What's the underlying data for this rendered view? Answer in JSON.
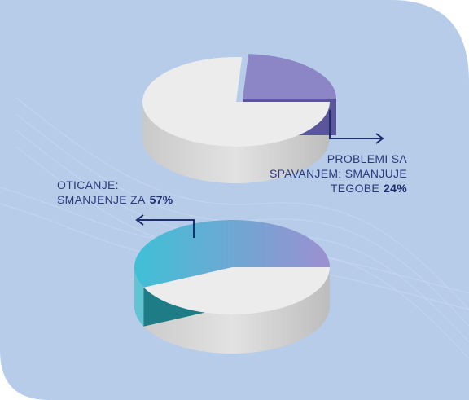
{
  "chart_data": [
    {
      "type": "pie",
      "label_lines": [
        "PROBLEMI SA",
        "SPAVANJEM: SMANJUJE",
        "TEGOBE"
      ],
      "values": [
        24
      ],
      "value_labels": [
        "24%"
      ],
      "colors": [
        "#8c86c6",
        "#8c86c6"
      ]
    },
    {
      "type": "pie",
      "label_lines": [
        "OTICANJE:",
        "SMANJENJE ZA"
      ],
      "values": [
        57
      ],
      "value_labels": [
        "57%"
      ],
      "colors": [
        "#3fc0d6",
        "#9c90d0"
      ]
    }
  ]
}
